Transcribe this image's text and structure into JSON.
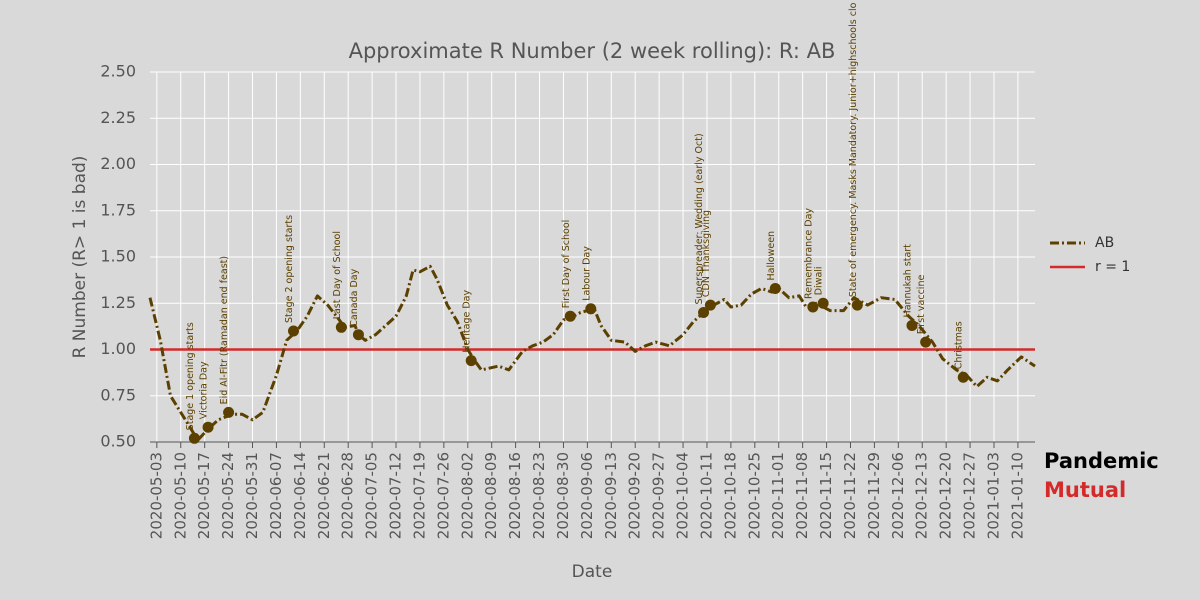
{
  "chart_data": {
    "type": "line",
    "title": "Approximate R Number (2 week rolling): R: AB",
    "xlabel": "Date",
    "ylabel": "R Number (R> 1 is bad)",
    "x": [
      "2020-05-01",
      "2020-05-04",
      "2020-05-07",
      "2020-05-11",
      "2020-05-15",
      "2020-05-18",
      "2020-05-21",
      "2020-05-25",
      "2020-05-28",
      "2020-05-31",
      "2020-06-03",
      "2020-06-07",
      "2020-06-10",
      "2020-06-13",
      "2020-06-16",
      "2020-06-19",
      "2020-06-22",
      "2020-06-25",
      "2020-06-27",
      "2020-06-30",
      "2020-07-01",
      "2020-07-03",
      "2020-07-06",
      "2020-07-09",
      "2020-07-12",
      "2020-07-15",
      "2020-07-17",
      "2020-07-19",
      "2020-07-22",
      "2020-07-24",
      "2020-07-27",
      "2020-07-30",
      "2020-08-02",
      "2020-08-04",
      "2020-08-06",
      "2020-08-11",
      "2020-08-14",
      "2020-08-18",
      "2020-08-21",
      "2020-08-24",
      "2020-08-27",
      "2020-08-30",
      "2020-09-02",
      "2020-09-04",
      "2020-09-08",
      "2020-09-10",
      "2020-09-13",
      "2020-09-17",
      "2020-09-20",
      "2020-09-23",
      "2020-09-26",
      "2020-09-30",
      "2020-10-04",
      "2020-10-07",
      "2020-10-10",
      "2020-10-13",
      "2020-10-16",
      "2020-10-18",
      "2020-10-21",
      "2020-10-24",
      "2020-10-27",
      "2020-10-30",
      "2020-11-01",
      "2020-11-04",
      "2020-11-07",
      "2020-11-09",
      "2020-11-12",
      "2020-11-16",
      "2020-11-20",
      "2020-11-23",
      "2020-11-27",
      "2020-12-01",
      "2020-12-05",
      "2020-12-09",
      "2020-12-12",
      "2020-12-16",
      "2020-12-19",
      "2020-12-23",
      "2020-12-26",
      "2020-12-29",
      "2021-01-01",
      "2021-01-04",
      "2021-01-07",
      "2021-01-11",
      "2021-01-15"
    ],
    "series": [
      {
        "name": "AB",
        "color": "#5c4000",
        "values": [
          1.28,
          1.05,
          0.75,
          0.63,
          0.51,
          0.57,
          0.62,
          0.65,
          0.65,
          0.62,
          0.66,
          0.86,
          1.05,
          1.1,
          1.18,
          1.29,
          1.24,
          1.17,
          1.12,
          1.13,
          1.08,
          1.05,
          1.08,
          1.13,
          1.18,
          1.29,
          1.43,
          1.42,
          1.45,
          1.38,
          1.24,
          1.15,
          1.0,
          0.94,
          0.89,
          0.91,
          0.89,
          0.99,
          1.02,
          1.04,
          1.08,
          1.16,
          1.18,
          1.2,
          1.22,
          1.13,
          1.05,
          1.04,
          0.99,
          1.02,
          1.04,
          1.02,
          1.08,
          1.15,
          1.2,
          1.24,
          1.27,
          1.23,
          1.24,
          1.3,
          1.33,
          1.31,
          1.33,
          1.28,
          1.29,
          1.23,
          1.25,
          1.21,
          1.21,
          1.28,
          1.24,
          1.28,
          1.27,
          1.18,
          1.13,
          1.04,
          0.95,
          0.89,
          0.86,
          0.8,
          0.85,
          0.83,
          0.89,
          0.96,
          0.91
        ]
      }
    ],
    "reference_lines": [
      {
        "name": "r = 1",
        "value": 1,
        "color": "#d42a2a"
      }
    ],
    "annotations": [
      {
        "text": "Stage 1 opening starts",
        "x": "2020-05-14",
        "y": 0.52
      },
      {
        "text": "Victoria Day",
        "x": "2020-05-18",
        "y": 0.58
      },
      {
        "text": "Eid Al-Fitr (Ramadan end feast)",
        "x": "2020-05-24",
        "y": 0.66
      },
      {
        "text": "Stage 2 opening starts",
        "x": "2020-06-12",
        "y": 1.1
      },
      {
        "text": "Last Day of School",
        "x": "2020-06-26",
        "y": 1.12
      },
      {
        "text": "Canada Day",
        "x": "2020-07-01",
        "y": 1.08
      },
      {
        "text": "Heritage Day",
        "x": "2020-08-03",
        "y": 0.94
      },
      {
        "text": "First Day of School",
        "x": "2020-09-01",
        "y": 1.18
      },
      {
        "text": "Labour Day",
        "x": "2020-09-07",
        "y": 1.22
      },
      {
        "text": "Superspreader: Wedding (early Oct)",
        "x": "2020-10-10",
        "y": 1.2
      },
      {
        "text": "CDN Thanksgiving",
        "x": "2020-10-12",
        "y": 1.24
      },
      {
        "text": "Halloween",
        "x": "2020-10-31",
        "y": 1.33
      },
      {
        "text": "Remembrance Day",
        "x": "2020-11-11",
        "y": 1.23
      },
      {
        "text": "Diwali",
        "x": "2020-11-14",
        "y": 1.25
      },
      {
        "text": "State of emergency.  Masks Mandatory.  Junior+highschools clo",
        "x": "2020-11-24",
        "y": 1.24
      },
      {
        "text": "Hannukah start",
        "x": "2020-12-10",
        "y": 1.13
      },
      {
        "text": "First vaccine",
        "x": "2020-12-14",
        "y": 1.04
      },
      {
        "text": "Christmas",
        "x": "2020-12-25",
        "y": 0.85
      }
    ],
    "xlim": [
      "2020-05-01",
      "2021-01-15"
    ],
    "xticks": [
      "2020-05-03",
      "2020-05-10",
      "2020-05-17",
      "2020-05-24",
      "2020-05-31",
      "2020-06-07",
      "2020-06-14",
      "2020-06-21",
      "2020-06-28",
      "2020-07-05",
      "2020-07-12",
      "2020-07-19",
      "2020-07-26",
      "2020-08-02",
      "2020-08-09",
      "2020-08-16",
      "2020-08-23",
      "2020-08-30",
      "2020-09-06",
      "2020-09-13",
      "2020-09-20",
      "2020-09-27",
      "2020-10-04",
      "2020-10-11",
      "2020-10-18",
      "2020-10-25",
      "2020-11-01",
      "2020-11-08",
      "2020-11-15",
      "2020-11-22",
      "2020-11-29",
      "2020-12-06",
      "2020-12-13",
      "2020-12-20",
      "2020-12-27",
      "2021-01-03",
      "2021-01-10"
    ],
    "ylim": [
      0.5,
      2.5
    ],
    "yticks": [
      {
        "value": 0.5,
        "label": "0.50"
      },
      {
        "value": 0.75,
        "label": "0.75"
      },
      {
        "value": 1,
        "label": "1.00"
      },
      {
        "value": 1.25,
        "label": "1.25"
      },
      {
        "value": 1.5,
        "label": "1.50"
      },
      {
        "value": 1.75,
        "label": "1.75"
      },
      {
        "value": 2,
        "label": "2.00"
      },
      {
        "value": 2.25,
        "label": "2.25"
      },
      {
        "value": 2.5,
        "label": "2.50"
      }
    ],
    "grid": true,
    "legend": "right"
  },
  "branding": {
    "line1": "Pandemic",
    "line2": "Mutual"
  }
}
